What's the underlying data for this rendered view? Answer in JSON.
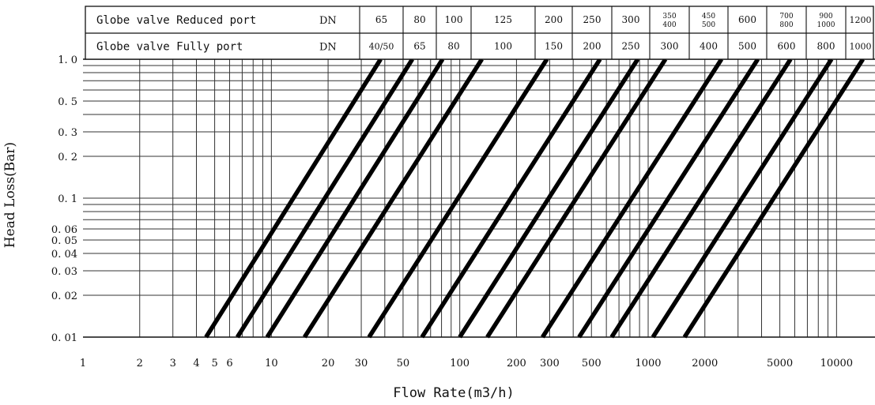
{
  "header_table": {
    "row1": {
      "label": "Globe valve Reduced port",
      "unit": "DN",
      "cells": [
        "65",
        "80",
        "100",
        "125",
        "200",
        "250",
        "300",
        "350\n400",
        "450\n500",
        "600",
        "700\n800",
        "900\n1000",
        "1200"
      ]
    },
    "row2": {
      "label": "Globe valve Fully port",
      "unit": "DN",
      "cells": [
        "40/50",
        "65",
        "80",
        "100",
        "150",
        "200",
        "250",
        "300",
        "400",
        "500",
        "600",
        "800",
        "1000"
      ]
    }
  },
  "chart_data": {
    "type": "line",
    "title": "",
    "xlabel": "Flow Rate(m3/h)",
    "ylabel": "Head Loss(Bar)",
    "x_scale": "log",
    "y_scale": "log",
    "xlim": [
      1,
      16000
    ],
    "ylim": [
      0.01,
      1.0
    ],
    "grid": true,
    "x_tick_labels": [
      {
        "value": 1,
        "label": "1"
      },
      {
        "value": 2,
        "label": "2"
      },
      {
        "value": 3,
        "label": "3"
      },
      {
        "value": 4,
        "label": "4"
      },
      {
        "value": 5,
        "label": "5"
      },
      {
        "value": 6,
        "label": "6"
      },
      {
        "value": 10,
        "label": "10"
      },
      {
        "value": 20,
        "label": "20"
      },
      {
        "value": 30,
        "label": "30"
      },
      {
        "value": 50,
        "label": "50"
      },
      {
        "value": 100,
        "label": "100"
      },
      {
        "value": 200,
        "label": "200"
      },
      {
        "value": 300,
        "label": "300"
      },
      {
        "value": 500,
        "label": "500"
      },
      {
        "value": 1000,
        "label": "1000"
      },
      {
        "value": 2000,
        "label": "2000"
      },
      {
        "value": 5000,
        "label": "5000"
      },
      {
        "value": 10000,
        "label": "10000"
      }
    ],
    "y_tick_labels": [
      {
        "value": 1.0,
        "label": "1. 0"
      },
      {
        "value": 0.5,
        "label": "0. 5"
      },
      {
        "value": 0.3,
        "label": "0. 3"
      },
      {
        "value": 0.2,
        "label": "0. 2"
      },
      {
        "value": 0.1,
        "label": "0. 1"
      },
      {
        "value": 0.06,
        "label": "0. 06"
      },
      {
        "value": 0.05,
        "label": "0. 05"
      },
      {
        "value": 0.04,
        "label": "0. 04"
      },
      {
        "value": 0.03,
        "label": "0. 03"
      },
      {
        "value": 0.02,
        "label": "0. 02"
      },
      {
        "value": 0.01,
        "label": "0. 01"
      }
    ],
    "x_gridlines": [
      2,
      3,
      4,
      5,
      6,
      7,
      8,
      9,
      10,
      20,
      30,
      40,
      50,
      60,
      70,
      80,
      90,
      100,
      200,
      300,
      400,
      500,
      600,
      700,
      800,
      900,
      1000,
      2000,
      3000,
      4000,
      5000,
      6000,
      7000,
      8000,
      9000,
      10000
    ],
    "y_gridlines": [
      0.02,
      0.03,
      0.04,
      0.05,
      0.06,
      0.07,
      0.08,
      0.09,
      0.1,
      0.2,
      0.3,
      0.4,
      0.5,
      0.6,
      0.7,
      0.8,
      0.9
    ],
    "series": [
      {
        "x": [
          4.5,
          38
        ],
        "y": [
          0.01,
          1.0
        ]
      },
      {
        "x": [
          6.6,
          56
        ],
        "y": [
          0.01,
          1.0
        ]
      },
      {
        "x": [
          9.5,
          81
        ],
        "y": [
          0.01,
          1.0
        ]
      },
      {
        "x": [
          15,
          131
        ],
        "y": [
          0.01,
          1.0
        ]
      },
      {
        "x": [
          33,
          290
        ],
        "y": [
          0.01,
          1.0
        ]
      },
      {
        "x": [
          63,
          555
        ],
        "y": [
          0.01,
          1.0
        ]
      },
      {
        "x": [
          100,
          880
        ],
        "y": [
          0.01,
          1.0
        ]
      },
      {
        "x": [
          140,
          1235
        ],
        "y": [
          0.01,
          1.0
        ]
      },
      {
        "x": [
          275,
          2450
        ],
        "y": [
          0.01,
          1.0
        ]
      },
      {
        "x": [
          430,
          3820
        ],
        "y": [
          0.01,
          1.0
        ]
      },
      {
        "x": [
          640,
          5700
        ],
        "y": [
          0.01,
          1.0
        ]
      },
      {
        "x": [
          1060,
          9400
        ],
        "y": [
          0.01,
          1.0
        ]
      },
      {
        "x": [
          1560,
          13800
        ],
        "y": [
          0.01,
          1.0
        ]
      }
    ]
  }
}
